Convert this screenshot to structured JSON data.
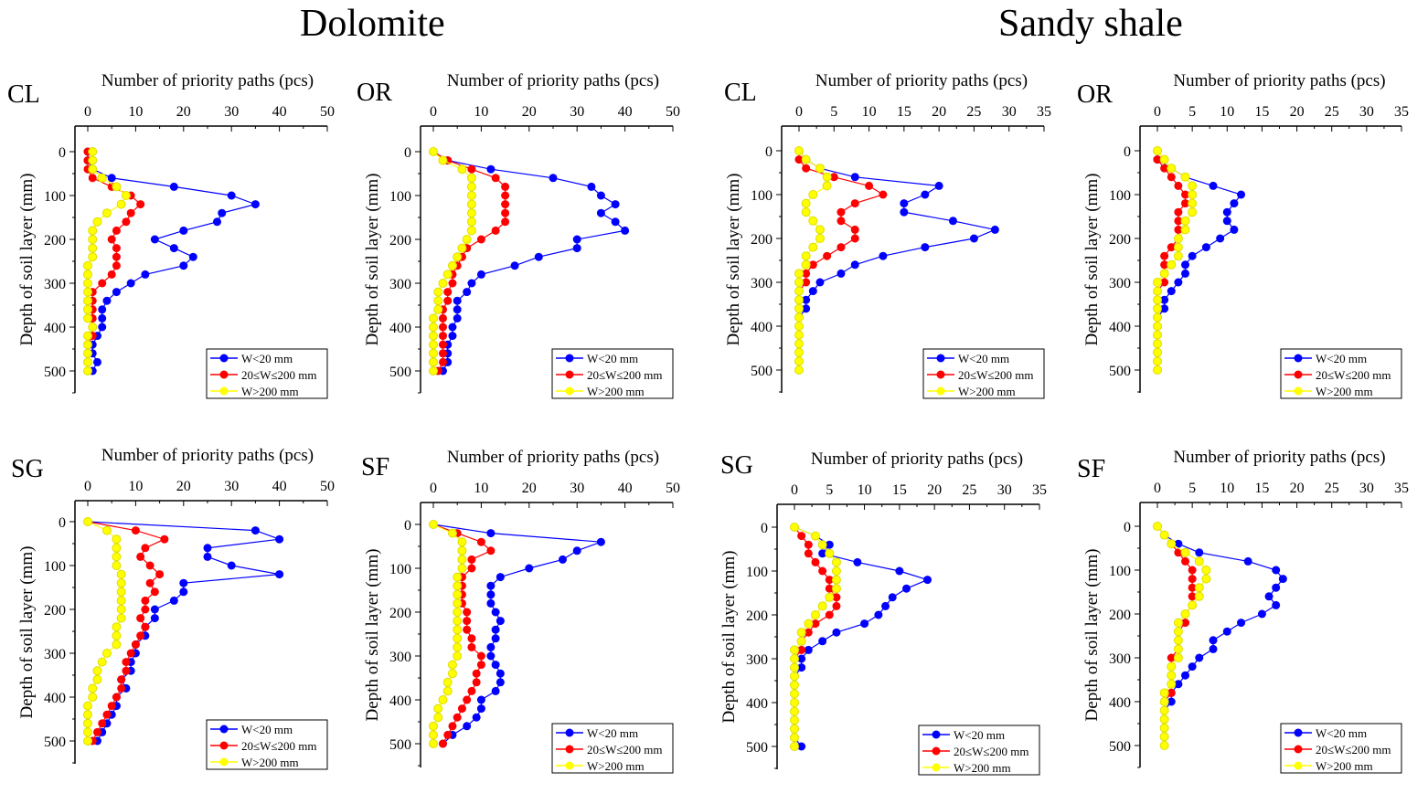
{
  "group_titles": [
    "Dolomite",
    "Sandy shale"
  ],
  "chart_data": [
    {
      "type": "line",
      "group": "Dolomite",
      "panel": "CL",
      "xlabel": "Number of priority paths (pcs)",
      "ylabel": "Depth of soil layer (mm)",
      "xlim": [
        0,
        50
      ],
      "xticks": [
        0,
        10,
        20,
        30,
        40,
        50
      ],
      "ylim": [
        500,
        0
      ],
      "yticks": [
        0,
        100,
        200,
        300,
        400,
        500
      ],
      "legend": "bottom-right",
      "depth": [
        0,
        20,
        40,
        60,
        80,
        100,
        120,
        140,
        160,
        180,
        200,
        220,
        240,
        260,
        280,
        300,
        320,
        340,
        360,
        380,
        400,
        420,
        440,
        460,
        480,
        500
      ],
      "series": [
        {
          "name": "W<20 mm",
          "color": "#0000ff",
          "values": [
            0,
            0,
            1,
            5,
            18,
            30,
            35,
            28,
            27,
            20,
            14,
            18,
            22,
            20,
            12,
            9,
            6,
            4,
            3,
            3,
            3,
            2,
            1,
            1,
            2,
            1
          ]
        },
        {
          "name": "20≤W≤200 mm",
          "color": "#ff0000",
          "values": [
            0,
            0,
            0,
            1,
            5,
            9,
            11,
            9,
            8,
            6,
            5,
            6,
            6,
            6,
            5,
            3,
            1,
            1,
            1,
            1,
            1,
            1,
            0,
            0,
            0,
            0
          ]
        },
        {
          "name": "W>200 mm",
          "color": "#ffff00",
          "values": [
            1,
            1,
            1,
            3,
            6,
            8,
            7,
            4,
            2,
            1,
            1,
            1,
            1,
            0,
            0,
            0,
            0,
            0,
            0,
            0,
            1,
            0,
            0,
            0,
            0,
            0
          ]
        }
      ]
    },
    {
      "type": "line",
      "group": "Dolomite",
      "panel": "OR",
      "xlabel": "Number of priority paths (pcs)",
      "ylabel": "Depth of soil layer (mm)",
      "xlim": [
        0,
        50
      ],
      "xticks": [
        0,
        10,
        20,
        30,
        40,
        50
      ],
      "ylim": [
        500,
        0
      ],
      "yticks": [
        0,
        100,
        200,
        300,
        400,
        500
      ],
      "legend": "bottom-right",
      "depth": [
        0,
        20,
        40,
        60,
        80,
        100,
        120,
        140,
        160,
        180,
        200,
        220,
        240,
        260,
        280,
        300,
        320,
        340,
        360,
        380,
        400,
        420,
        440,
        460,
        480,
        500
      ],
      "series": [
        {
          "name": "W<20 mm",
          "color": "#0000ff",
          "values": [
            0,
            3,
            12,
            25,
            33,
            35,
            38,
            35,
            38,
            40,
            30,
            30,
            22,
            17,
            10,
            8,
            7,
            5,
            5,
            5,
            4,
            4,
            3,
            3,
            3,
            2
          ]
        },
        {
          "name": "20≤W≤200 mm",
          "color": "#ff0000",
          "values": [
            0,
            3,
            8,
            13,
            15,
            15,
            15,
            15,
            15,
            13,
            10,
            7,
            6,
            5,
            4,
            4,
            3,
            3,
            2,
            2,
            2,
            2,
            2,
            2,
            2,
            1
          ]
        },
        {
          "name": "W>200 mm",
          "color": "#ffff00",
          "values": [
            0,
            2,
            6,
            8,
            8,
            8,
            8,
            8,
            8,
            8,
            7,
            6,
            5,
            4,
            3,
            2,
            1,
            1,
            1,
            0,
            0,
            0,
            0,
            0,
            0,
            0
          ]
        }
      ]
    },
    {
      "type": "line",
      "group": "Sandy shale",
      "panel": "CL",
      "xlabel": "Number of priority paths (pcs)",
      "ylabel": "Depth of soil layer (mm)",
      "xlim": [
        0,
        35
      ],
      "xticks": [
        0,
        5,
        10,
        15,
        20,
        25,
        30,
        35
      ],
      "ylim": [
        500,
        0
      ],
      "yticks": [
        0,
        100,
        200,
        300,
        400,
        500
      ],
      "legend": "bottom-right",
      "depth": [
        0,
        20,
        40,
        60,
        80,
        100,
        120,
        140,
        160,
        180,
        200,
        220,
        240,
        260,
        280,
        300,
        320,
        340,
        360,
        380,
        400,
        420,
        440,
        460,
        480,
        500
      ],
      "series": [
        {
          "name": "W<20 mm",
          "color": "#0000ff",
          "values": [
            0,
            1,
            3,
            8,
            20,
            18,
            15,
            15,
            22,
            28,
            25,
            18,
            12,
            8,
            6,
            3,
            2,
            1,
            1,
            0,
            0,
            0,
            0,
            0,
            0,
            0
          ]
        },
        {
          "name": "20≤W≤200 mm",
          "color": "#ff0000",
          "values": [
            0,
            0,
            1,
            5,
            10,
            12,
            8,
            6,
            6,
            8,
            8,
            6,
            4,
            2,
            1,
            1,
            0,
            0,
            0,
            0,
            0,
            0,
            0,
            0,
            0,
            0
          ]
        },
        {
          "name": "W>200 mm",
          "color": "#ffff00",
          "values": [
            0,
            1,
            3,
            4,
            4,
            2,
            1,
            1,
            2,
            3,
            3,
            2,
            1,
            1,
            0,
            0,
            0,
            0,
            0,
            0,
            0,
            0,
            0,
            0,
            0,
            0
          ]
        }
      ]
    },
    {
      "type": "line",
      "group": "Sandy shale",
      "panel": "OR",
      "xlabel": "Number of priority paths (pcs)",
      "ylabel": "Depth of soil layer (mm)",
      "xlim": [
        0,
        35
      ],
      "xticks": [
        0,
        5,
        10,
        15,
        20,
        25,
        30,
        35
      ],
      "ylim": [
        500,
        0
      ],
      "yticks": [
        0,
        100,
        200,
        300,
        400,
        500
      ],
      "legend": "bottom-right",
      "depth": [
        0,
        20,
        40,
        60,
        80,
        100,
        120,
        140,
        160,
        180,
        200,
        220,
        240,
        260,
        280,
        300,
        320,
        340,
        360,
        380,
        400,
        420,
        440,
        460,
        480,
        500
      ],
      "series": [
        {
          "name": "W<20 mm",
          "color": "#0000ff",
          "values": [
            0,
            0,
            2,
            4,
            8,
            12,
            11,
            10,
            10,
            11,
            9,
            7,
            5,
            4,
            4,
            3,
            2,
            1,
            1,
            0,
            0,
            0,
            0,
            0,
            0,
            0
          ]
        },
        {
          "name": "20≤W≤200 mm",
          "color": "#ff0000",
          "values": [
            0,
            0,
            1,
            2,
            3,
            4,
            4,
            3,
            3,
            3,
            3,
            2,
            1,
            1,
            1,
            1,
            0,
            0,
            0,
            0,
            0,
            0,
            0,
            0,
            0,
            0
          ]
        },
        {
          "name": "W>200 mm",
          "color": "#ffff00",
          "values": [
            0,
            1,
            2,
            4,
            5,
            5,
            5,
            5,
            4,
            4,
            3,
            3,
            3,
            2,
            1,
            0,
            0,
            0,
            0,
            0,
            0,
            0,
            0,
            0,
            0,
            0
          ]
        }
      ]
    },
    {
      "type": "line",
      "group": "Dolomite",
      "panel": "SG",
      "xlabel": "Number of priority paths (pcs)",
      "ylabel": "Depth of soil layer (mm)",
      "xlim": [
        0,
        50
      ],
      "xticks": [
        0,
        10,
        20,
        30,
        40,
        50
      ],
      "ylim": [
        500,
        0
      ],
      "yticks": [
        0,
        100,
        200,
        300,
        400,
        500
      ],
      "legend": "bottom-right",
      "depth": [
        0,
        20,
        40,
        60,
        80,
        100,
        120,
        140,
        160,
        180,
        200,
        220,
        240,
        260,
        280,
        300,
        320,
        340,
        360,
        380,
        400,
        420,
        440,
        460,
        480,
        500
      ],
      "series": [
        {
          "name": "W<20 mm",
          "color": "#0000ff",
          "values": [
            0,
            35,
            40,
            25,
            25,
            30,
            40,
            20,
            20,
            18,
            14,
            14,
            12,
            12,
            10,
            10,
            9,
            9,
            7,
            8,
            6,
            6,
            5,
            4,
            3,
            2
          ]
        },
        {
          "name": "20≤W≤200 mm",
          "color": "#ff0000",
          "values": [
            0,
            10,
            16,
            12,
            11,
            13,
            15,
            13,
            14,
            12,
            12,
            11,
            12,
            11,
            10,
            9,
            8,
            8,
            7,
            7,
            6,
            5,
            4,
            3,
            2,
            1
          ]
        },
        {
          "name": "W>200 mm",
          "color": "#ffff00",
          "values": [
            0,
            4,
            6,
            6,
            6,
            6,
            7,
            7,
            7,
            7,
            7,
            7,
            6,
            6,
            6,
            4,
            3,
            2,
            2,
            1,
            1,
            0,
            0,
            0,
            0,
            0
          ]
        }
      ]
    },
    {
      "type": "line",
      "group": "Dolomite",
      "panel": "SF",
      "xlabel": "Number of priority paths (pcs)",
      "ylabel": "Depth of soil layer (mm)",
      "xlim": [
        0,
        50
      ],
      "xticks": [
        0,
        10,
        20,
        30,
        40,
        50
      ],
      "ylim": [
        500,
        0
      ],
      "yticks": [
        0,
        100,
        200,
        300,
        400,
        500
      ],
      "legend": "bottom-right",
      "depth": [
        0,
        20,
        40,
        60,
        80,
        100,
        120,
        140,
        160,
        180,
        200,
        220,
        240,
        260,
        280,
        300,
        320,
        340,
        360,
        380,
        400,
        420,
        440,
        460,
        480,
        500
      ],
      "series": [
        {
          "name": "W<20 mm",
          "color": "#0000ff",
          "values": [
            0,
            12,
            35,
            30,
            27,
            20,
            14,
            12,
            12,
            12,
            13,
            14,
            13,
            13,
            12,
            12,
            13,
            14,
            14,
            13,
            10,
            10,
            9,
            7,
            4,
            2
          ]
        },
        {
          "name": "20≤W≤200 mm",
          "color": "#ff0000",
          "values": [
            0,
            5,
            10,
            12,
            8,
            8,
            6,
            6,
            6,
            6,
            7,
            7,
            7,
            8,
            8,
            10,
            10,
            9,
            9,
            8,
            7,
            6,
            5,
            4,
            3,
            2
          ]
        },
        {
          "name": "W>200 mm",
          "color": "#ffff00",
          "values": [
            0,
            4,
            6,
            6,
            6,
            6,
            5,
            5,
            5,
            5,
            5,
            5,
            5,
            5,
            5,
            5,
            4,
            4,
            3,
            3,
            2,
            1,
            1,
            0,
            0,
            0
          ]
        }
      ]
    },
    {
      "type": "line",
      "group": "Sandy shale",
      "panel": "SG",
      "xlabel": "Number of priority paths (pcs)",
      "ylabel": "Depth of soil layer (mm)",
      "xlim": [
        0,
        35
      ],
      "xticks": [
        0,
        5,
        10,
        15,
        20,
        25,
        30,
        35
      ],
      "ylim": [
        500,
        0
      ],
      "yticks": [
        0,
        100,
        200,
        300,
        400,
        500
      ],
      "legend": "bottom-right",
      "depth": [
        0,
        20,
        40,
        60,
        80,
        100,
        120,
        140,
        160,
        180,
        200,
        220,
        240,
        260,
        280,
        300,
        320,
        340,
        360,
        380,
        400,
        420,
        440,
        460,
        480,
        500
      ],
      "series": [
        {
          "name": "W<20 mm",
          "color": "#0000ff",
          "values": [
            0,
            3,
            5,
            4,
            9,
            15,
            19,
            16,
            14,
            13,
            12,
            10,
            6,
            4,
            2,
            1,
            1,
            0,
            0,
            0,
            0,
            0,
            0,
            0,
            0,
            1
          ]
        },
        {
          "name": "20≤W≤200 mm",
          "color": "#ff0000",
          "values": [
            0,
            1,
            2,
            2,
            3,
            4,
            5,
            5,
            6,
            6,
            5,
            3,
            2,
            1,
            1,
            0,
            0,
            0,
            0,
            0,
            0,
            0,
            0,
            0,
            0,
            0
          ]
        },
        {
          "name": "W>200 mm",
          "color": "#ffff00",
          "values": [
            0,
            3,
            4,
            5,
            6,
            6,
            6,
            6,
            5,
            4,
            3,
            2,
            1,
            1,
            0,
            0,
            0,
            0,
            0,
            0,
            0,
            0,
            0,
            0,
            0,
            0
          ]
        }
      ]
    },
    {
      "type": "line",
      "group": "Sandy shale",
      "panel": "SF",
      "xlabel": "Number of priority paths (pcs)",
      "ylabel": "Depth of soil layer (mm)",
      "xlim": [
        0,
        35
      ],
      "xticks": [
        0,
        5,
        10,
        15,
        20,
        25,
        30,
        35
      ],
      "ylim": [
        500,
        0
      ],
      "yticks": [
        0,
        100,
        200,
        300,
        400,
        500
      ],
      "legend": "bottom-right",
      "depth": [
        0,
        20,
        40,
        60,
        80,
        100,
        120,
        140,
        160,
        180,
        200,
        220,
        240,
        260,
        280,
        300,
        320,
        340,
        360,
        380,
        400,
        420,
        440,
        460,
        480,
        500
      ],
      "series": [
        {
          "name": "W<20 mm",
          "color": "#0000ff",
          "values": [
            0,
            1,
            3,
            6,
            13,
            17,
            18,
            17,
            16,
            17,
            15,
            12,
            10,
            8,
            8,
            6,
            5,
            4,
            3,
            2,
            2,
            1,
            1,
            1,
            1,
            1
          ]
        },
        {
          "name": "20≤W≤200 mm",
          "color": "#ff0000",
          "values": [
            0,
            1,
            2,
            3,
            4,
            5,
            5,
            5,
            5,
            5,
            4,
            4,
            3,
            3,
            3,
            2,
            2,
            2,
            2,
            2,
            1,
            1,
            1,
            1,
            1,
            1
          ]
        },
        {
          "name": "W>200 mm",
          "color": "#ffff00",
          "values": [
            0,
            1,
            2,
            4,
            6,
            7,
            7,
            6,
            6,
            5,
            4,
            3,
            3,
            3,
            3,
            3,
            2,
            2,
            2,
            1,
            1,
            1,
            1,
            1,
            1,
            1
          ]
        }
      ]
    }
  ]
}
